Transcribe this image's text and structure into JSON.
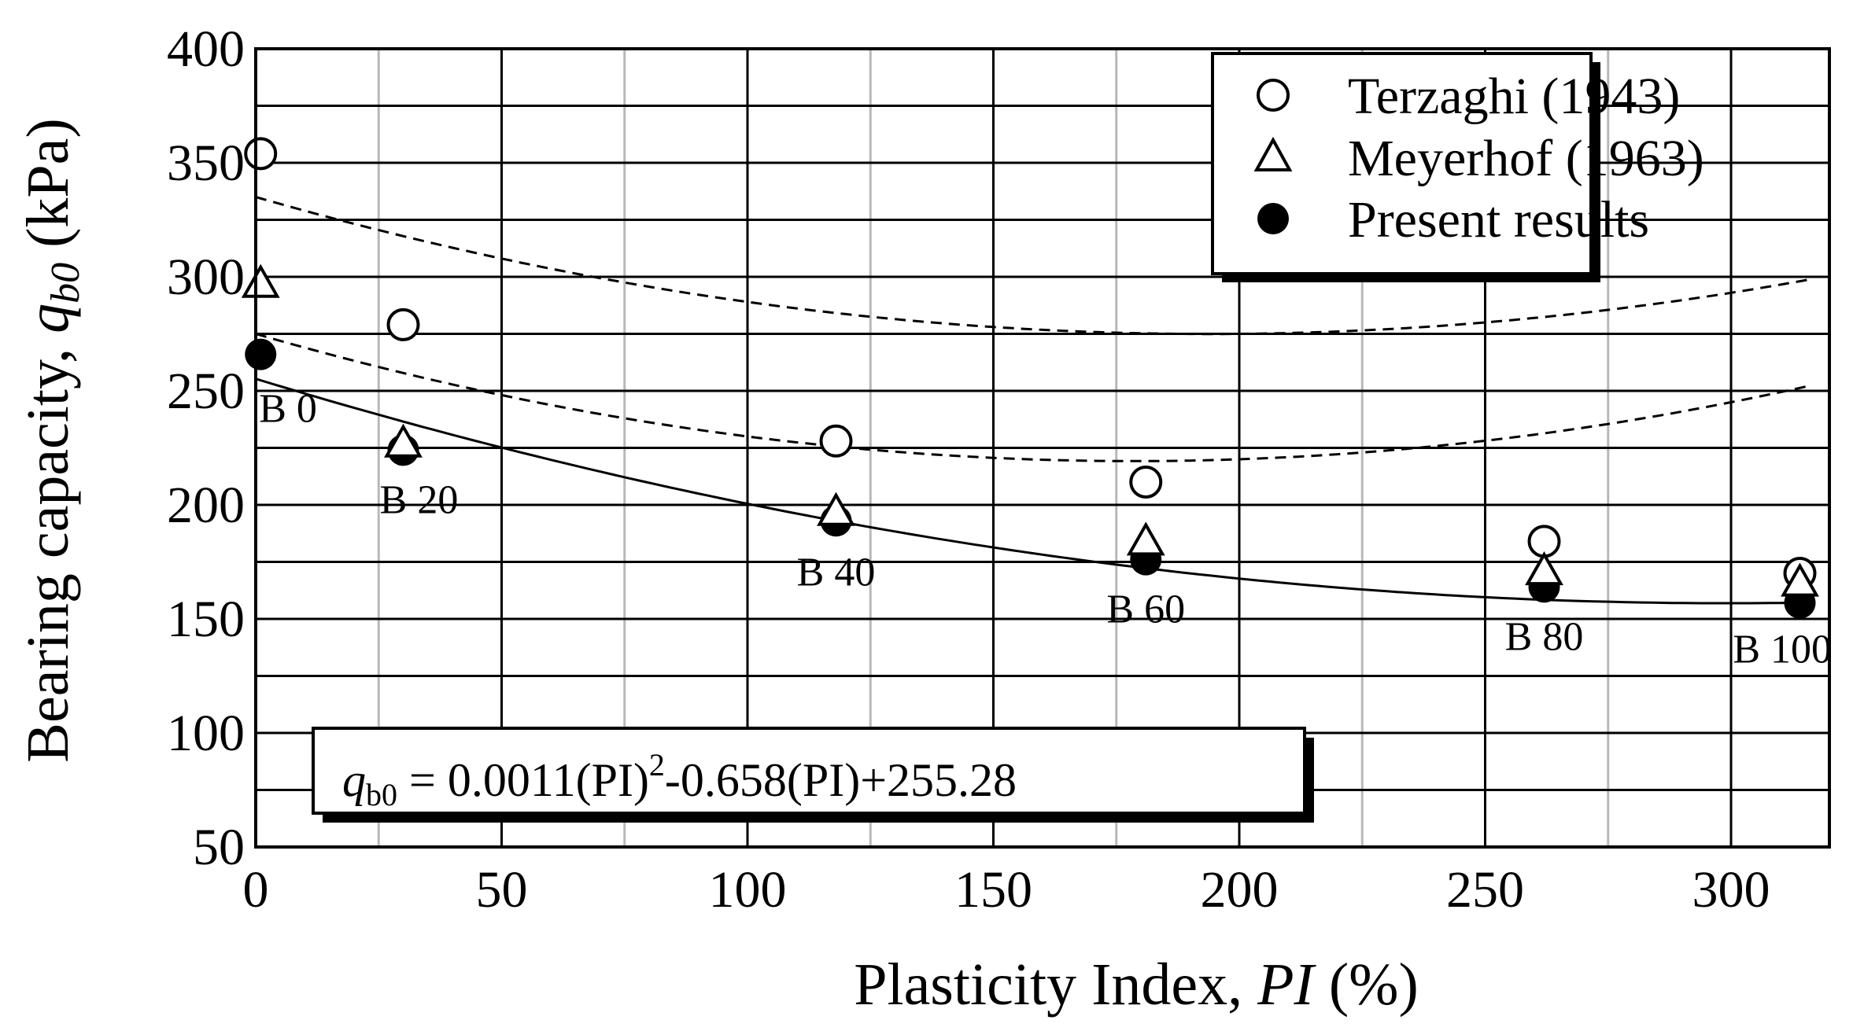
{
  "chart_data": {
    "type": "scatter",
    "xlabel": "Plasticity Index, PI (%)",
    "ylabel": "Bearing capacity, qb0 (kPa)",
    "xlabel_parts": {
      "prefix": "Plasticity Index, ",
      "var": "PI",
      "suffix": " (%)"
    },
    "ylabel_parts": {
      "prefix": "Bearing capacity, ",
      "var": "q",
      "sub": "b0",
      "suffix": " (kPa)"
    },
    "xlim": [
      0,
      320
    ],
    "ylim": [
      50,
      400
    ],
    "x_ticks": [
      0,
      50,
      100,
      150,
      200,
      250,
      300
    ],
    "y_ticks": [
      50,
      100,
      150,
      200,
      250,
      300,
      350,
      400
    ],
    "x_grid_major": [
      50,
      100,
      150,
      200,
      250,
      300
    ],
    "x_grid_minor": [
      25,
      75,
      125,
      175,
      225,
      275
    ],
    "y_grid": [
      75,
      100,
      125,
      150,
      175,
      200,
      225,
      250,
      275,
      300,
      325,
      350,
      375
    ],
    "grid": true,
    "legend_position": "top-right",
    "series": [
      {
        "name": "Terzaghi (1943)",
        "marker": "open-circle",
        "x": [
          1,
          30,
          118,
          181,
          262,
          314
        ],
        "y": [
          354,
          279,
          228,
          210,
          184,
          170
        ],
        "trend": {
          "style": "dashed",
          "coef": [
            0.0016,
            -0.62,
            335
          ]
        }
      },
      {
        "name": "Meyerhof (1963)",
        "marker": "open-triangle",
        "x": [
          1,
          30,
          118,
          181,
          262,
          314
        ],
        "y": [
          297,
          227,
          197,
          184,
          171,
          166
        ],
        "trend": {
          "style": "dashed",
          "coef": [
            0.00175,
            -0.625,
            275
          ]
        }
      },
      {
        "name": "Present results",
        "marker": "filled-circle",
        "x": [
          1,
          30,
          118,
          181,
          262,
          314
        ],
        "y": [
          266,
          224,
          193,
          176,
          164,
          157
        ],
        "trend": {
          "style": "solid",
          "coef": [
            0.0011,
            -0.658,
            255.28
          ]
        }
      }
    ],
    "point_labels": [
      {
        "text": "B 0",
        "x": 1
      },
      {
        "text": "B 20",
        "x": 30
      },
      {
        "text": "B 40",
        "x": 118
      },
      {
        "text": "B 60",
        "x": 181
      },
      {
        "text": "B 80",
        "x": 262
      },
      {
        "text": "B 100",
        "x": 314
      }
    ],
    "equation": {
      "lhs_var": "q",
      "lhs_sub": "b0",
      "rhs_part1": " = 0.0011(PI)",
      "rhs_sup": "2",
      "rhs_part2": "-0.658(PI)+255.28"
    }
  }
}
